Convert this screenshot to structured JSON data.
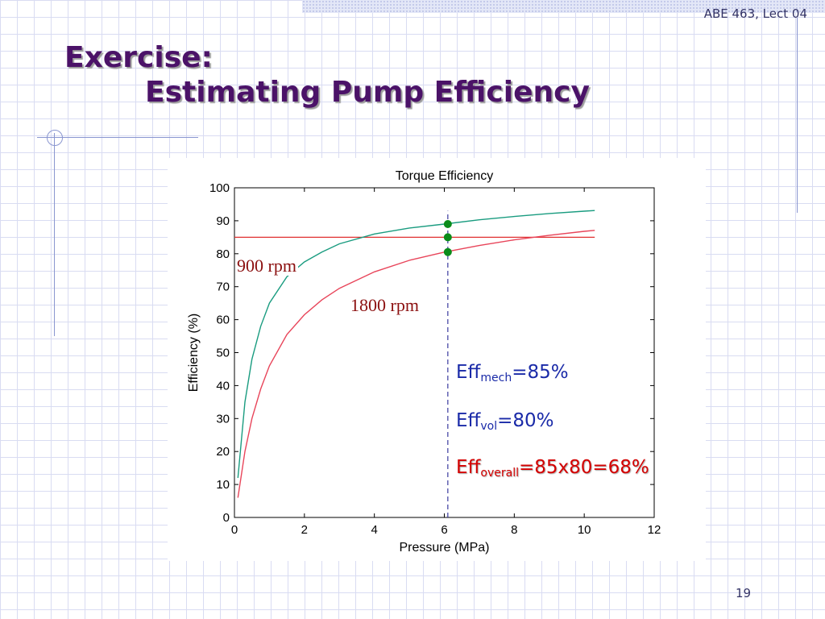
{
  "slide": {
    "lecture": "ABE 463, Lect 04",
    "title_line1": "Exercise:",
    "title_line2": "Estimating Pump Efficiency",
    "page_number": "19",
    "label_900": "900 rpm",
    "label_1800": "1800 rpm",
    "eff_mech_prefix": "Eff",
    "eff_mech_sub": "mech",
    "eff_mech_value": "=85%",
    "eff_vol_prefix": "Eff",
    "eff_vol_sub": "vol",
    "eff_vol_value": "=80%",
    "eff_overall_prefix": "Eff",
    "eff_overall_sub": "overall",
    "eff_overall_value": "=85x80=68%"
  },
  "chart_data": {
    "type": "line",
    "title": "Torque Efficiency",
    "xlabel": "Pressure (MPa)",
    "ylabel": "Efficiency (%)",
    "xlim": [
      0,
      12
    ],
    "ylim": [
      0,
      100
    ],
    "xticks": [
      0,
      2,
      4,
      6,
      8,
      10,
      12
    ],
    "yticks": [
      0,
      10,
      20,
      30,
      40,
      50,
      60,
      70,
      80,
      90,
      100
    ],
    "grid": false,
    "series": [
      {
        "name": "900 rpm",
        "color": "#1a9c80",
        "x": [
          0.1,
          0.3,
          0.5,
          0.75,
          1,
          1.5,
          2,
          2.5,
          3,
          4,
          5,
          6,
          7,
          8,
          9,
          10,
          10.3
        ],
        "y": [
          12,
          35,
          48,
          58,
          65,
          73,
          77.5,
          80.5,
          83,
          86,
          87.8,
          89,
          90.3,
          91.3,
          92.2,
          92.9,
          93.1
        ]
      },
      {
        "name": "1800 rpm",
        "color": "#e8455a",
        "x": [
          0.1,
          0.3,
          0.5,
          0.75,
          1,
          1.5,
          2,
          2.5,
          3,
          4,
          5,
          6,
          7,
          8,
          9,
          10,
          10.3
        ],
        "y": [
          6,
          20,
          30,
          39,
          46,
          55.5,
          61.5,
          66,
          69.5,
          74.5,
          78,
          80.5,
          82.5,
          84.2,
          85.6,
          86.8,
          87.1
        ]
      }
    ],
    "reference_lines": [
      {
        "orientation": "horizontal",
        "value": 85,
        "x_range": [
          0,
          10.3
        ],
        "color": "#e03030",
        "style": "solid"
      },
      {
        "orientation": "vertical",
        "value": 6.1,
        "y_range": [
          0,
          93
        ],
        "color": "#3a3aa0",
        "style": "dashed"
      }
    ],
    "markers": [
      {
        "x": 6.1,
        "y": 89,
        "color": "#0a8c1a"
      },
      {
        "x": 6.1,
        "y": 85,
        "color": "#0a8c1a"
      },
      {
        "x": 6.1,
        "y": 80.5,
        "color": "#0a8c1a"
      }
    ]
  }
}
